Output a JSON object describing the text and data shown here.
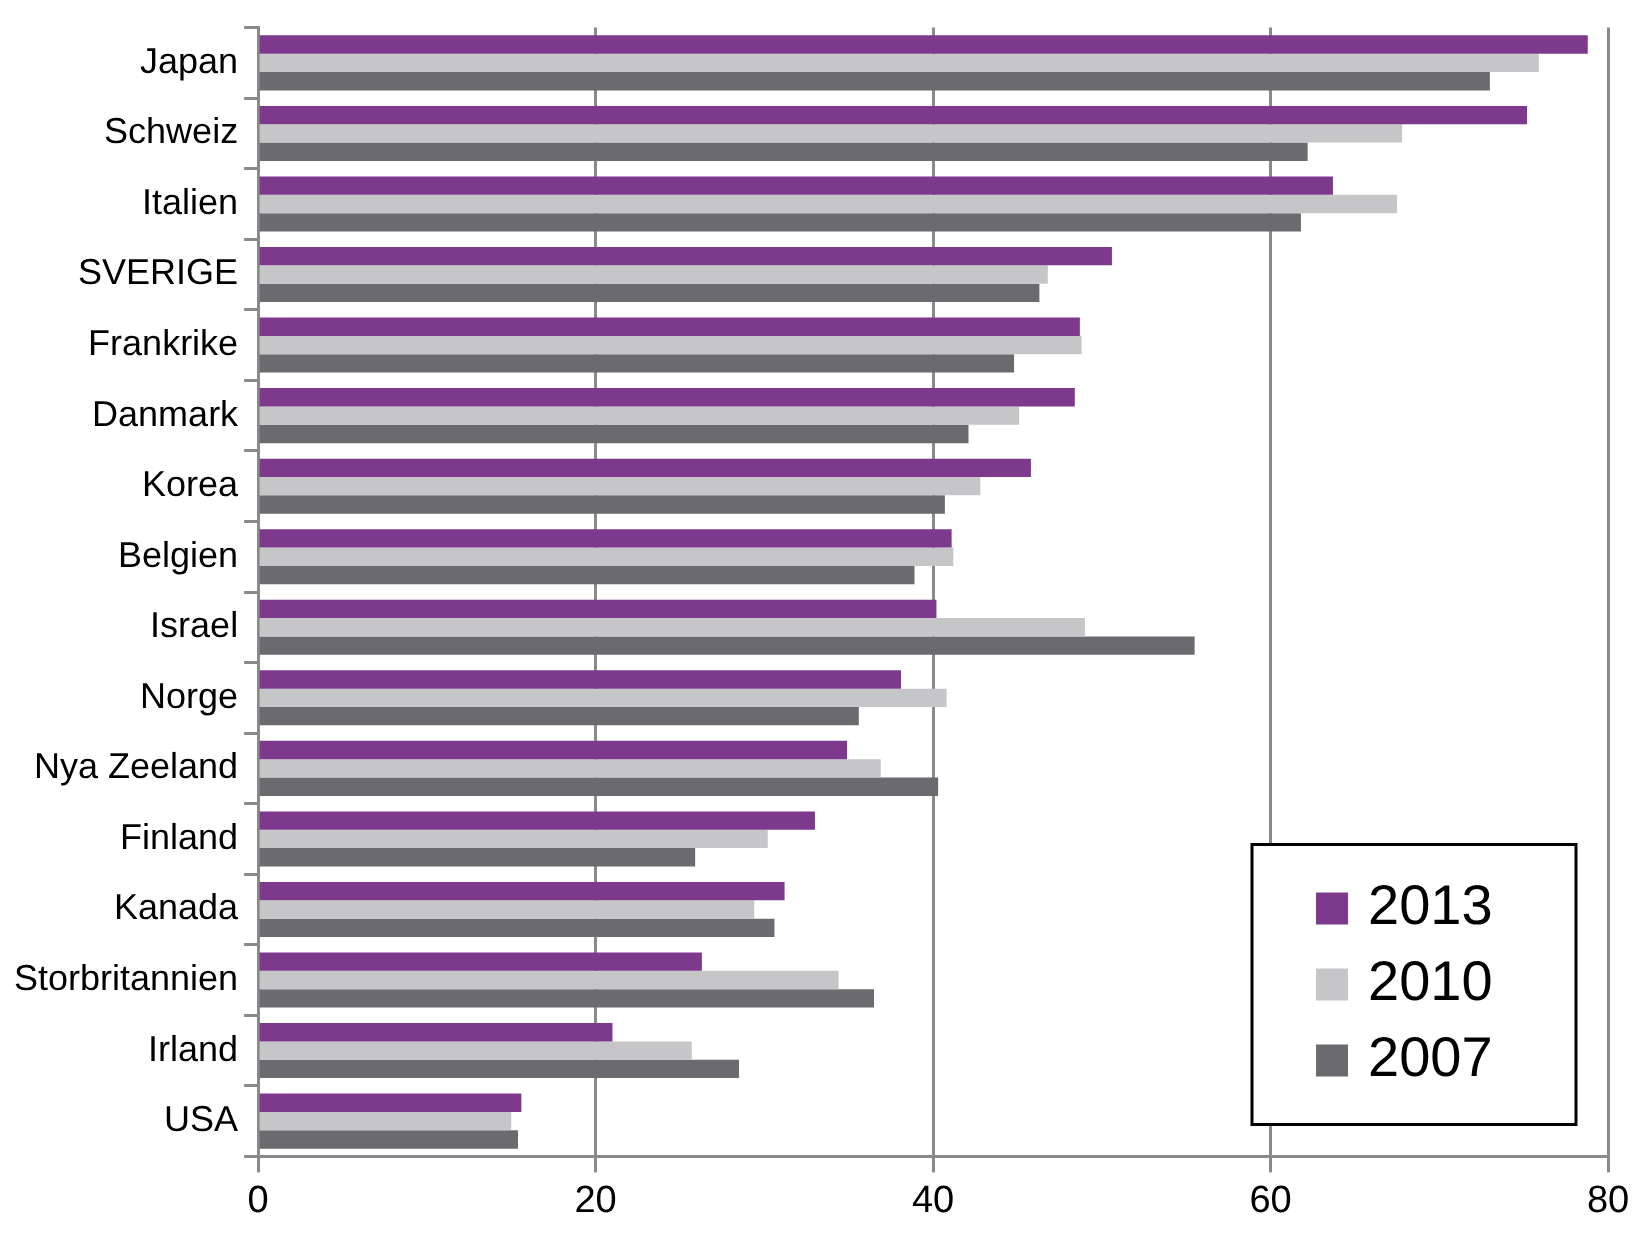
{
  "chart_data": {
    "type": "bar",
    "orientation": "horizontal",
    "categories": [
      "Japan",
      "Schweiz",
      "Italien",
      "SVERIGE",
      "Frankrike",
      "Danmark",
      "Korea",
      "Belgien",
      "Israel",
      "Norge",
      "Nya Zeeland",
      "Finland",
      "Kanada",
      "Storbritannien",
      "Irland",
      "USA"
    ],
    "series": [
      {
        "name": "2013",
        "color": "#7d3a8c",
        "values": [
          78.8,
          75.2,
          63.7,
          50.6,
          48.7,
          48.4,
          45.8,
          41.1,
          40.2,
          38.1,
          34.9,
          33.0,
          31.2,
          26.3,
          21.0,
          15.6
        ]
      },
      {
        "name": "2010",
        "color": "#c6c6c8",
        "values": [
          75.9,
          67.8,
          67.5,
          46.8,
          48.8,
          45.1,
          42.8,
          41.2,
          49.0,
          40.8,
          36.9,
          30.2,
          29.4,
          34.4,
          25.7,
          15.0
        ]
      },
      {
        "name": "2007",
        "color": "#6b6b6f",
        "values": [
          73.0,
          62.2,
          61.8,
          46.3,
          44.8,
          42.1,
          40.7,
          38.9,
          55.5,
          35.6,
          40.3,
          25.9,
          30.6,
          36.5,
          28.5,
          15.4
        ]
      }
    ],
    "xlim": [
      0,
      80
    ],
    "xticks": [
      0,
      20,
      40,
      60,
      80
    ],
    "grid": "x",
    "legend": "bottom right"
  }
}
